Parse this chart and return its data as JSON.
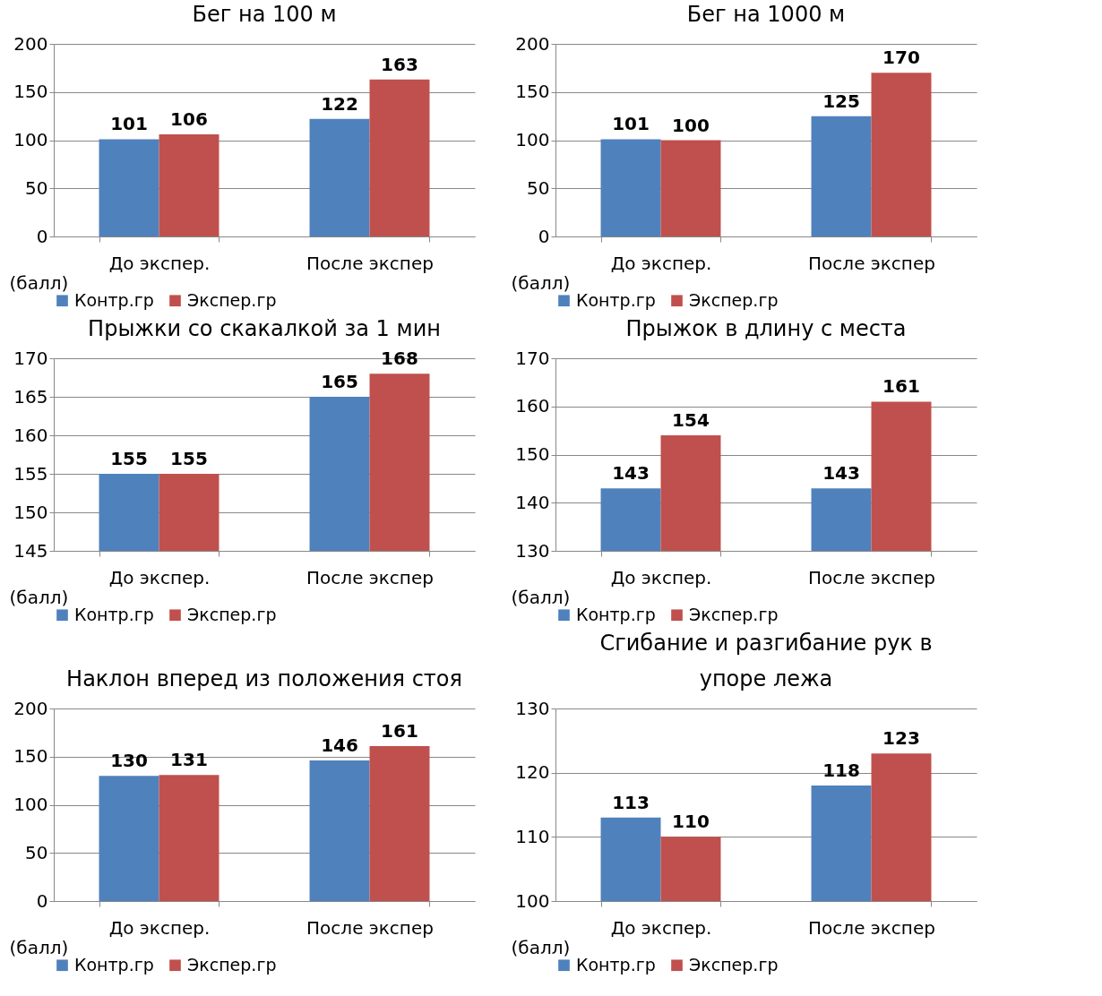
{
  "chart_data": [
    {
      "type": "bar",
      "title": "Бег на 100 м",
      "ylabel": "(балл)",
      "categories": [
        "До экспер.",
        "После экспер"
      ],
      "series": [
        {
          "name": "Контр.гр",
          "color": "#4f81bd",
          "values": [
            101,
            122
          ]
        },
        {
          "name": "Экспер.гр",
          "color": "#c0504d",
          "values": [
            106,
            163
          ]
        }
      ],
      "ylim": [
        0,
        200
      ],
      "yticks": [
        0,
        50,
        100,
        150,
        200
      ],
      "grid": "y",
      "legend": "bottom",
      "data_labels": true
    },
    {
      "type": "bar",
      "title": "Бег на 1000 м",
      "ylabel": "(балл)",
      "categories": [
        "До экспер.",
        "После экспер"
      ],
      "series": [
        {
          "name": "Контр.гр",
          "color": "#4f81bd",
          "values": [
            101,
            125
          ]
        },
        {
          "name": "Экспер.гр",
          "color": "#c0504d",
          "values": [
            100,
            170
          ]
        }
      ],
      "ylim": [
        0,
        200
      ],
      "yticks": [
        0,
        50,
        100,
        150,
        200
      ],
      "grid": "y",
      "legend": "bottom",
      "data_labels": true
    },
    {
      "type": "bar",
      "title": "Прыжки со скакалкой за 1 мин",
      "ylabel": "(балл)",
      "categories": [
        "До экспер.",
        "После экспер"
      ],
      "series": [
        {
          "name": "Контр.гр",
          "color": "#4f81bd",
          "values": [
            155,
            165
          ]
        },
        {
          "name": "Экспер.гр",
          "color": "#c0504d",
          "values": [
            155,
            168
          ]
        }
      ],
      "ylim": [
        145,
        170
      ],
      "yticks": [
        145,
        150,
        155,
        160,
        165,
        170
      ],
      "grid": "y",
      "legend": "bottom",
      "data_labels": true
    },
    {
      "type": "bar",
      "title": "Прыжок в длину с места",
      "ylabel": "(балл)",
      "categories": [
        "До экспер.",
        "После экспер"
      ],
      "series": [
        {
          "name": "Контр.гр",
          "color": "#4f81bd",
          "values": [
            143,
            143
          ]
        },
        {
          "name": "Экспер.гр",
          "color": "#c0504d",
          "values": [
            154,
            161
          ]
        }
      ],
      "ylim": [
        130,
        170
      ],
      "yticks": [
        130,
        140,
        150,
        160,
        170
      ],
      "grid": "y",
      "legend": "bottom",
      "data_labels": true
    },
    {
      "type": "bar",
      "title": "Наклон вперед из положения стоя",
      "ylabel": "(балл)",
      "categories": [
        "До экспер.",
        "После экспер"
      ],
      "series": [
        {
          "name": "Контр.гр",
          "color": "#4f81bd",
          "values": [
            130,
            146
          ]
        },
        {
          "name": "Экспер.гр",
          "color": "#c0504d",
          "values": [
            131,
            161
          ]
        }
      ],
      "ylim": [
        0,
        200
      ],
      "yticks": [
        0,
        50,
        100,
        150,
        200
      ],
      "grid": "y",
      "legend": "bottom",
      "data_labels": true
    },
    {
      "type": "bar",
      "title": "Сгибание и разгибание рук в\nупоре лежа",
      "ylabel": "(балл)",
      "categories": [
        "До экспер.",
        "После экспер"
      ],
      "series": [
        {
          "name": "Контр.гр",
          "color": "#4f81bd",
          "values": [
            113,
            118
          ]
        },
        {
          "name": "Экспер.гр",
          "color": "#c0504d",
          "values": [
            110,
            123
          ]
        }
      ],
      "ylim": [
        100,
        130
      ],
      "yticks": [
        100,
        110,
        120,
        130
      ],
      "grid": "y",
      "legend": "bottom",
      "data_labels": true
    }
  ]
}
